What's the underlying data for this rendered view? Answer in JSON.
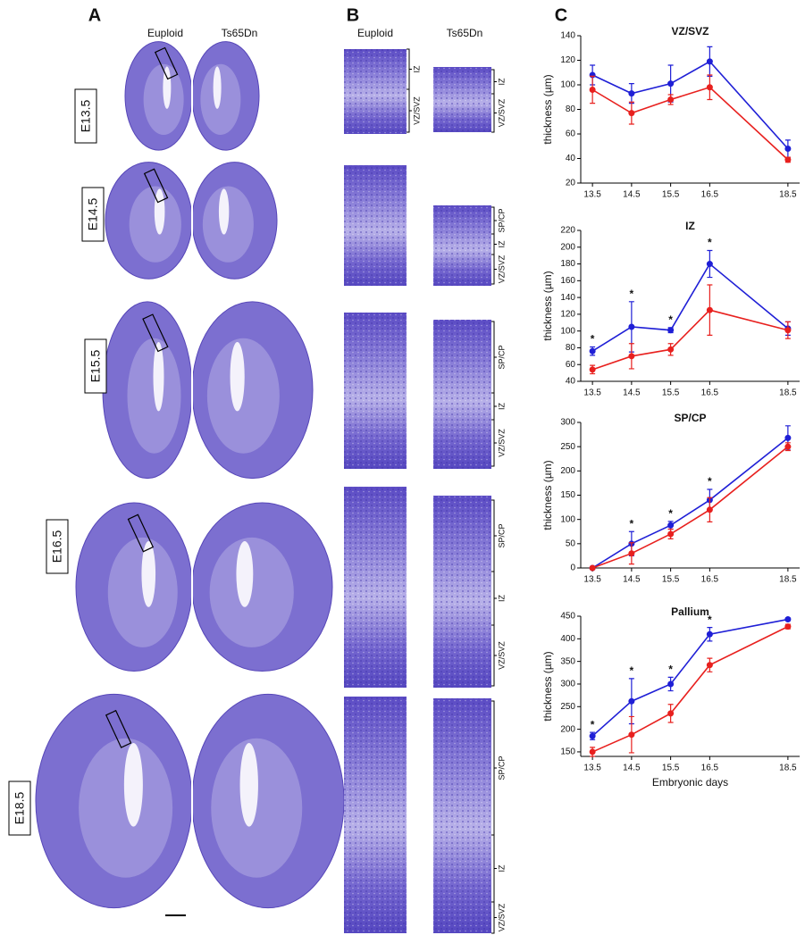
{
  "panel_a": {
    "label": "A",
    "columns": [
      "Euploid",
      "Ts65Dn"
    ],
    "stages": [
      "E13.5",
      "E14.5",
      "E15.5",
      "E16.5",
      "E18.5"
    ]
  },
  "panel_b": {
    "label": "B",
    "columns": [
      "Euploid",
      "Ts65Dn"
    ],
    "rows": [
      {
        "euploid_layers": [
          "IZ",
          "VZ/SVZ"
        ],
        "ts65dn_layers": [
          "IZ",
          "VZ/SVZ"
        ]
      },
      {
        "ts65dn_layers": [
          "SP/CP",
          "IZ",
          "VZ/SVZ"
        ]
      },
      {
        "ts65dn_layers": [
          "SP/CP",
          "IZ",
          "VZ/SVZ"
        ]
      },
      {
        "ts65dn_layers": [
          "SP/CP",
          "IZ",
          "VZ/SVZ"
        ]
      },
      {
        "ts65dn_layers": [
          "SP/CP",
          "IZ",
          "VZ/SVZ"
        ]
      }
    ]
  },
  "panel_c": {
    "label": "C"
  },
  "chart_data": [
    {
      "type": "line",
      "title": "VZ/SVZ",
      "ylabel": "thickness (µm)",
      "x": [
        13.5,
        14.5,
        15.5,
        16.5,
        18.5
      ],
      "xticks": [
        13.5,
        14.5,
        15.5,
        16.5,
        18.5
      ],
      "xlim": [
        13.2,
        18.8
      ],
      "ylim": [
        20,
        140
      ],
      "yticks": [
        20,
        40,
        60,
        80,
        100,
        120,
        140
      ],
      "series": [
        {
          "color": "#1f1fd6",
          "values": [
            108,
            93,
            101,
            119,
            48
          ],
          "errors": [
            8,
            8,
            15,
            12,
            7
          ]
        },
        {
          "color": "#e8201e",
          "values": [
            96,
            77,
            88,
            98,
            39
          ],
          "errors": [
            11,
            9,
            4,
            10,
            2
          ]
        }
      ],
      "annotations": []
    },
    {
      "type": "line",
      "title": "IZ",
      "ylabel": "thickness (µm)",
      "x": [
        13.5,
        14.5,
        15.5,
        16.5,
        18.5
      ],
      "xticks": [
        13.5,
        14.5,
        15.5,
        16.5,
        18.5
      ],
      "xlim": [
        13.2,
        18.8
      ],
      "ylim": [
        40,
        220
      ],
      "yticks": [
        40,
        60,
        80,
        100,
        120,
        140,
        160,
        180,
        200,
        220
      ],
      "series": [
        {
          "color": "#1f1fd6",
          "values": [
            76,
            105,
            101,
            180,
            103
          ],
          "errors": [
            5,
            30,
            3,
            16,
            8
          ]
        },
        {
          "color": "#e8201e",
          "values": [
            54,
            70,
            78,
            125,
            101
          ],
          "errors": [
            5,
            15,
            7,
            30,
            10
          ]
        }
      ],
      "annotations": [
        {
          "x": 13.5,
          "text": "*"
        },
        {
          "x": 14.5,
          "text": "*"
        },
        {
          "x": 15.5,
          "text": "*"
        },
        {
          "x": 16.5,
          "text": "*"
        }
      ]
    },
    {
      "type": "line",
      "title": "SP/CP",
      "ylabel": "thickness (µm)",
      "x": [
        13.5,
        14.5,
        15.5,
        16.5,
        18.5
      ],
      "xticks": [
        13.5,
        14.5,
        15.5,
        16.5,
        18.5
      ],
      "xlim": [
        13.2,
        18.8
      ],
      "ylim": [
        0,
        300
      ],
      "yticks": [
        0,
        50,
        100,
        150,
        200,
        250,
        300
      ],
      "series": [
        {
          "color": "#1f1fd6",
          "values": [
            0,
            50,
            88,
            140,
            268
          ],
          "errors": [
            0,
            25,
            8,
            22,
            25
          ]
        },
        {
          "color": "#e8201e",
          "values": [
            0,
            30,
            70,
            120,
            250
          ],
          "errors": [
            0,
            22,
            10,
            25,
            8
          ]
        }
      ],
      "annotations": [
        {
          "x": 14.5,
          "text": "*"
        },
        {
          "x": 15.5,
          "text": "*"
        },
        {
          "x": 16.5,
          "text": "*"
        }
      ]
    },
    {
      "type": "line",
      "title": "Pallium",
      "ylabel": "thickness (µm)",
      "xlabel": "Embryonic days",
      "x": [
        13.5,
        14.5,
        15.5,
        16.5,
        18.5
      ],
      "xticks": [
        13.5,
        14.5,
        15.5,
        16.5,
        18.5
      ],
      "xlim": [
        13.2,
        18.8
      ],
      "ylim": [
        140,
        450
      ],
      "yticks": [
        150,
        200,
        250,
        300,
        350,
        400,
        450
      ],
      "series": [
        {
          "color": "#1f1fd6",
          "values": [
            185,
            262,
            300,
            410,
            443
          ],
          "errors": [
            8,
            50,
            15,
            15,
            3
          ]
        },
        {
          "color": "#e8201e",
          "values": [
            150,
            188,
            235,
            342,
            427
          ],
          "errors": [
            10,
            40,
            20,
            15,
            5
          ]
        }
      ],
      "annotations": [
        {
          "x": 13.5,
          "text": "*"
        },
        {
          "x": 14.5,
          "text": "*"
        },
        {
          "x": 15.5,
          "text": "*"
        },
        {
          "x": 16.5,
          "text": "*"
        }
      ]
    }
  ]
}
